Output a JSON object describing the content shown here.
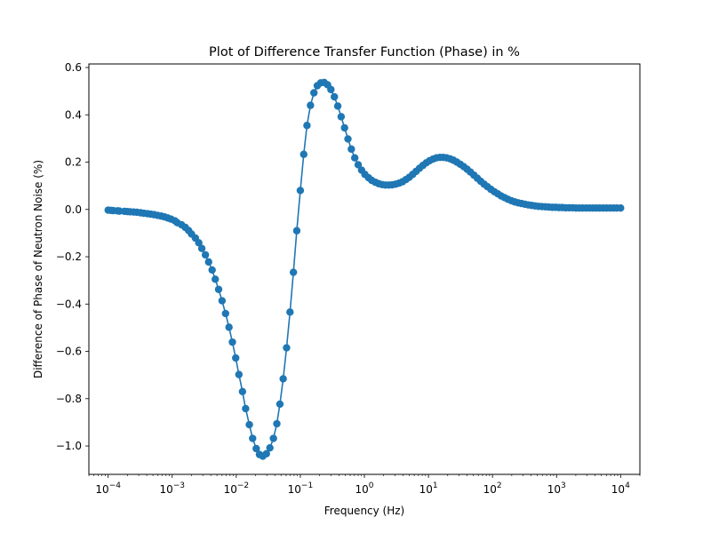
{
  "chart_data": {
    "type": "line",
    "title": "Plot of Difference Transfer Function (Phase) in %",
    "xlabel": "Frequency (Hz)",
    "ylabel": "Difference of Phase of Neutron Noise (%)",
    "x_scale": "log",
    "xlim": [
      5e-05,
      20000
    ],
    "ylim": [
      -1.12,
      0.615
    ],
    "grid": false,
    "legend": "none",
    "x_tick_values": [
      0.0001,
      0.001,
      0.01,
      0.1,
      1,
      10,
      100,
      1000,
      10000
    ],
    "x_tick_labels": [
      {
        "base": "10",
        "exp": "−4"
      },
      {
        "base": "10",
        "exp": "−3"
      },
      {
        "base": "10",
        "exp": "−2"
      },
      {
        "base": "10",
        "exp": "−1"
      },
      {
        "base": "10",
        "exp": "0"
      },
      {
        "base": "10",
        "exp": "1"
      },
      {
        "base": "10",
        "exp": "2"
      },
      {
        "base": "10",
        "exp": "3"
      },
      {
        "base": "10",
        "exp": "4"
      }
    ],
    "y_ticks": [
      {
        "value": -1.0,
        "label": "−1.0"
      },
      {
        "value": -0.8,
        "label": "−0.8"
      },
      {
        "value": -0.6,
        "label": "−0.6"
      },
      {
        "value": -0.4,
        "label": "−0.4"
      },
      {
        "value": -0.2,
        "label": "−0.2"
      },
      {
        "value": 0.0,
        "label": "0.0"
      },
      {
        "value": 0.2,
        "label": "0.2"
      },
      {
        "value": 0.4,
        "label": "0.4"
      },
      {
        "value": 0.6,
        "label": "0.6"
      }
    ],
    "series": [
      {
        "color": "#1f77b4",
        "marker": "circle",
        "x": [
          0.0001,
          0.00011,
          0.00012,
          0.00014,
          0.00015,
          0.00018,
          0.0002,
          0.00022,
          0.00025,
          0.00028,
          0.00032,
          0.00036,
          0.00041,
          0.00046,
          0.00052,
          0.00059,
          0.00067,
          0.00075,
          0.00085,
          0.00096,
          0.0011,
          0.0012,
          0.0014,
          0.0016,
          0.0018,
          0.002,
          0.0023,
          0.0026,
          0.0029,
          0.0033,
          0.0037,
          0.0042,
          0.0047,
          0.0053,
          0.006,
          0.0068,
          0.0077,
          0.0087,
          0.0098,
          0.011,
          0.0125,
          0.014,
          0.016,
          0.018,
          0.0205,
          0.023,
          0.026,
          0.0295,
          0.0335,
          0.038,
          0.043,
          0.048,
          0.054,
          0.061,
          0.069,
          0.078,
          0.088,
          0.1,
          0.113,
          0.127,
          0.144,
          0.163,
          0.184,
          0.208,
          0.235,
          0.266,
          0.3,
          0.34,
          0.384,
          0.434,
          0.49,
          0.554,
          0.626,
          0.708,
          0.8,
          0.904,
          1.02,
          1.16,
          1.3,
          1.48,
          1.67,
          1.89,
          2.13,
          2.41,
          2.72,
          3.08,
          3.48,
          3.93,
          4.44,
          5.02,
          5.67,
          6.41,
          7.24,
          8.18,
          9.24,
          10.4,
          11.8,
          13.3,
          15.1,
          17.0,
          19.2,
          21.8,
          24.6,
          27.8,
          31.4,
          35.5,
          40.1,
          45.3,
          51.2,
          57.9,
          65.4,
          73.9,
          83.5,
          94.3,
          107,
          121,
          136,
          154,
          174,
          197,
          222,
          251,
          284,
          321,
          362,
          409,
          463,
          523,
          591,
          668,
          754,
          853,
          963,
          1090,
          1230,
          1390,
          1570,
          1780,
          2010,
          2270,
          2560,
          2900,
          3270,
          3700,
          4180,
          4720,
          5340,
          6030,
          6810,
          7700,
          8700,
          10000
        ],
        "y": [
          -0.003,
          -0.004,
          -0.005,
          -0.006,
          -0.007,
          -0.008,
          -0.009,
          -0.01,
          -0.011,
          -0.012,
          -0.014,
          -0.016,
          -0.018,
          -0.02,
          -0.022,
          -0.025,
          -0.028,
          -0.031,
          -0.036,
          -0.041,
          -0.048,
          -0.056,
          -0.065,
          -0.076,
          -0.089,
          -0.104,
          -0.121,
          -0.141,
          -0.165,
          -0.192,
          -0.222,
          -0.256,
          -0.295,
          -0.338,
          -0.386,
          -0.44,
          -0.498,
          -0.561,
          -0.628,
          -0.698,
          -0.77,
          -0.842,
          -0.91,
          -0.968,
          -1.011,
          -1.036,
          -1.043,
          -1.033,
          -1.008,
          -0.968,
          -0.906,
          -0.823,
          -0.716,
          -0.585,
          -0.434,
          -0.266,
          -0.09,
          0.08,
          0.233,
          0.355,
          0.44,
          0.493,
          0.523,
          0.535,
          0.537,
          0.527,
          0.507,
          0.476,
          0.437,
          0.392,
          0.345,
          0.298,
          0.255,
          0.218,
          0.189,
          0.166,
          0.148,
          0.134,
          0.123,
          0.115,
          0.109,
          0.105,
          0.103,
          0.103,
          0.104,
          0.107,
          0.111,
          0.117,
          0.126,
          0.136,
          0.148,
          0.161,
          0.174,
          0.186,
          0.197,
          0.206,
          0.213,
          0.218,
          0.22,
          0.22,
          0.218,
          0.214,
          0.208,
          0.2,
          0.191,
          0.181,
          0.17,
          0.158,
          0.145,
          0.132,
          0.119,
          0.107,
          0.096,
          0.085,
          0.075,
          0.066,
          0.057,
          0.05,
          0.043,
          0.037,
          0.032,
          0.028,
          0.025,
          0.022,
          0.019,
          0.017,
          0.015,
          0.013,
          0.012,
          0.011,
          0.01,
          0.009,
          0.009,
          0.008,
          0.008,
          0.007,
          0.007,
          0.007,
          0.006,
          0.006,
          0.006,
          0.006,
          0.006,
          0.006,
          0.006,
          0.006,
          0.006,
          0.006,
          0.006,
          0.006,
          0.006,
          0.006
        ]
      }
    ]
  }
}
